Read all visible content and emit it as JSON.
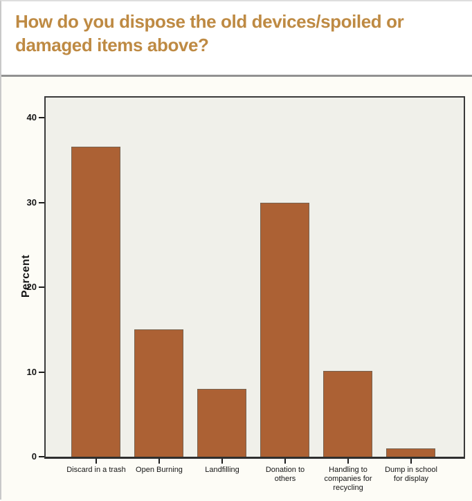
{
  "header": {
    "title": "How do you dispose the old devices/spoiled or damaged items above?",
    "title_color": "#be8a43"
  },
  "chart_data": {
    "type": "bar",
    "title": "How do you dispose the old devices/spoiled or damaged items above?",
    "xlabel": "",
    "ylabel": "Percent",
    "categories": [
      "Discard in a trash",
      "Open Burning",
      "Landfilling",
      "Donation to others",
      "Handling to companies for recycling",
      "Dump in school for display"
    ],
    "category_lines": [
      [
        "Discard in a trash"
      ],
      [
        "Open Burning"
      ],
      [
        "Landfilling"
      ],
      [
        "Donation to",
        "others"
      ],
      [
        "Handling to",
        "companies for",
        "recycling"
      ],
      [
        "Dump in school",
        "for display"
      ]
    ],
    "values": [
      36.6,
      15,
      8,
      30,
      10.1,
      1
    ],
    "ylim": [
      0,
      42.4
    ],
    "yticks": [
      0,
      10,
      20,
      30,
      40
    ],
    "grid": false,
    "legend": null,
    "bar_color": "#ac6134",
    "plot_bg": "#f0f0ea"
  }
}
